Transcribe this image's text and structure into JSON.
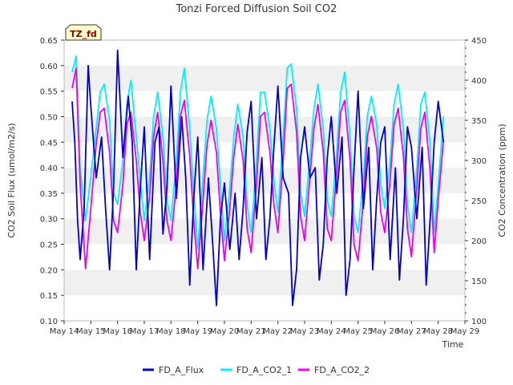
{
  "chart_data": {
    "type": "line",
    "title": "Tonzi Forced Diffusion Soil CO2",
    "site_badge": "TZ_fd",
    "xlabel": "Time",
    "ylabel_left": "CO2 Soil Flux (umol/m2/s)",
    "ylabel_right": "CO2 Concentration (ppm)",
    "x_ticks": [
      "May 14",
      "May 15",
      "May 16",
      "May 17",
      "May 18",
      "May 19",
      "May 20",
      "May 21",
      "May 22",
      "May 23",
      "May 24",
      "May 25",
      "May 26",
      "May 27",
      "May 28",
      "May 29"
    ],
    "xlim_days": [
      14,
      29
    ],
    "ylim_left": [
      0.1,
      0.65
    ],
    "ylim_right": [
      100,
      450
    ],
    "y_ticks_left": [
      "0.10",
      "0.15",
      "0.20",
      "0.25",
      "0.30",
      "0.35",
      "0.40",
      "0.45",
      "0.50",
      "0.55",
      "0.60",
      "0.65"
    ],
    "y_ticks_right": [
      "100",
      "150",
      "200",
      "250",
      "300",
      "350",
      "400",
      "450"
    ],
    "grid": "horizontal bands",
    "legend_position": "bottom",
    "series": [
      {
        "name": "FD_A_Flux",
        "axis": "left",
        "color": "#0000cc",
        "x": [
          14.3,
          14.4,
          14.5,
          14.6,
          14.75,
          14.9,
          15.0,
          15.2,
          15.4,
          15.55,
          15.7,
          15.85,
          16.0,
          16.2,
          16.4,
          16.55,
          16.7,
          16.85,
          17.0,
          17.2,
          17.4,
          17.55,
          17.7,
          17.85,
          18.0,
          18.2,
          18.4,
          18.55,
          18.7,
          18.85,
          19.0,
          19.2,
          19.4,
          19.55,
          19.7,
          19.85,
          20.0,
          20.2,
          20.4,
          20.55,
          20.7,
          20.85,
          21.0,
          21.2,
          21.4,
          21.55,
          21.7,
          21.85,
          22.0,
          22.2,
          22.4,
          22.55,
          22.7,
          22.85,
          23.0,
          23.2,
          23.4,
          23.55,
          23.7,
          23.85,
          24.0,
          24.2,
          24.4,
          24.55,
          24.7,
          24.85,
          25.0,
          25.2,
          25.4,
          25.55,
          25.7,
          25.85,
          26.0,
          26.2,
          26.4,
          26.55,
          26.7,
          26.85,
          27.0,
          27.2,
          27.4,
          27.55,
          27.7,
          27.85,
          28.0,
          28.2
        ],
        "y": [
          0.53,
          0.45,
          0.3,
          0.22,
          0.32,
          0.6,
          0.52,
          0.38,
          0.46,
          0.32,
          0.2,
          0.36,
          0.63,
          0.42,
          0.54,
          0.45,
          0.2,
          0.36,
          0.48,
          0.22,
          0.45,
          0.48,
          0.27,
          0.36,
          0.56,
          0.34,
          0.5,
          0.38,
          0.17,
          0.34,
          0.46,
          0.2,
          0.38,
          0.26,
          0.13,
          0.3,
          0.37,
          0.24,
          0.35,
          0.22,
          0.32,
          0.47,
          0.53,
          0.3,
          0.42,
          0.22,
          0.3,
          0.44,
          0.56,
          0.38,
          0.35,
          0.13,
          0.2,
          0.42,
          0.48,
          0.38,
          0.4,
          0.18,
          0.25,
          0.42,
          0.5,
          0.35,
          0.46,
          0.15,
          0.22,
          0.4,
          0.55,
          0.32,
          0.44,
          0.2,
          0.34,
          0.45,
          0.48,
          0.22,
          0.4,
          0.18,
          0.3,
          0.48,
          0.44,
          0.3,
          0.44,
          0.17,
          0.3,
          0.45,
          0.53,
          0.45
        ]
      },
      {
        "name": "FD_A_CO2_1",
        "axis": "right",
        "color": "#00eeff",
        "x": [
          14.3,
          14.45,
          14.6,
          14.8,
          15.0,
          15.2,
          15.35,
          15.5,
          15.7,
          15.85,
          16.0,
          16.2,
          16.35,
          16.5,
          16.7,
          16.85,
          17.0,
          17.2,
          17.35,
          17.5,
          17.7,
          17.85,
          18.0,
          18.2,
          18.35,
          18.5,
          18.7,
          18.85,
          19.0,
          19.2,
          19.35,
          19.5,
          19.7,
          19.85,
          20.0,
          20.2,
          20.35,
          20.5,
          20.7,
          20.85,
          21.0,
          21.2,
          21.35,
          21.5,
          21.7,
          21.85,
          22.0,
          22.2,
          22.35,
          22.5,
          22.7,
          22.85,
          23.0,
          23.2,
          23.35,
          23.5,
          23.7,
          23.85,
          24.0,
          24.2,
          24.35,
          24.5,
          24.7,
          24.85,
          25.0,
          25.2,
          25.35,
          25.5,
          25.7,
          25.85,
          26.0,
          26.2,
          26.35,
          26.5,
          26.7,
          26.85,
          27.0,
          27.2,
          27.35,
          27.5,
          27.7,
          27.85,
          28.0,
          28.2
        ],
        "y": [
          410,
          430,
          290,
          225,
          280,
          340,
          385,
          395,
          350,
          260,
          245,
          300,
          370,
          400,
          330,
          275,
          225,
          280,
          355,
          385,
          330,
          250,
          225,
          300,
          385,
          415,
          340,
          260,
          190,
          280,
          350,
          380,
          340,
          270,
          200,
          265,
          330,
          370,
          330,
          245,
          210,
          300,
          385,
          385,
          340,
          275,
          235,
          330,
          415,
          420,
          365,
          260,
          230,
          305,
          365,
          395,
          340,
          250,
          230,
          310,
          385,
          410,
          330,
          230,
          210,
          280,
          355,
          380,
          345,
          270,
          240,
          300,
          370,
          395,
          340,
          245,
          210,
          290,
          370,
          385,
          320,
          210,
          270,
          355
        ]
      },
      {
        "name": "FD_A_CO2_2",
        "axis": "right",
        "color": "#ee00ee",
        "x": [
          14.3,
          14.45,
          14.6,
          14.8,
          15.0,
          15.2,
          15.35,
          15.5,
          15.7,
          15.85,
          16.0,
          16.2,
          16.35,
          16.5,
          16.7,
          16.85,
          17.0,
          17.2,
          17.35,
          17.5,
          17.7,
          17.85,
          18.0,
          18.2,
          18.35,
          18.5,
          18.7,
          18.85,
          19.0,
          19.2,
          19.35,
          19.5,
          19.7,
          19.85,
          20.0,
          20.2,
          20.35,
          20.5,
          20.7,
          20.85,
          21.0,
          21.2,
          21.35,
          21.5,
          21.7,
          21.85,
          22.0,
          22.2,
          22.35,
          22.5,
          22.7,
          22.85,
          23.0,
          23.2,
          23.35,
          23.5,
          23.7,
          23.85,
          24.0,
          24.2,
          24.35,
          24.5,
          24.7,
          24.85,
          25.0,
          25.2,
          25.35,
          25.5,
          25.7,
          25.85,
          26.0,
          26.2,
          26.35,
          26.5,
          26.7,
          26.85,
          27.0,
          27.2,
          27.35,
          27.5,
          27.7,
          27.85,
          28.0,
          28.2
        ],
        "y": [
          390,
          415,
          270,
          165,
          240,
          320,
          360,
          365,
          310,
          225,
          210,
          270,
          345,
          360,
          300,
          235,
          200,
          255,
          330,
          360,
          300,
          225,
          200,
          270,
          355,
          375,
          305,
          225,
          165,
          250,
          320,
          350,
          310,
          235,
          175,
          240,
          305,
          345,
          300,
          215,
          185,
          270,
          355,
          360,
          310,
          245,
          210,
          300,
          390,
          395,
          335,
          230,
          200,
          280,
          340,
          370,
          310,
          215,
          200,
          285,
          360,
          375,
          300,
          195,
          175,
          250,
          330,
          355,
          315,
          235,
          210,
          275,
          345,
          365,
          305,
          215,
          180,
          265,
          340,
          360,
          285,
          185,
          250,
          325
        ]
      }
    ]
  }
}
